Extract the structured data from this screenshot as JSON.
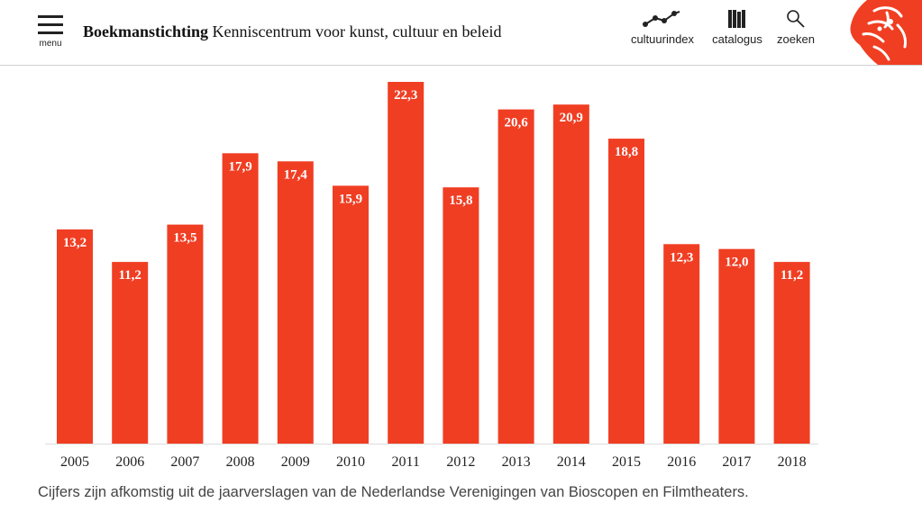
{
  "header": {
    "menu_label": "menu",
    "brand": "Boekmanstichting",
    "tagline": "Kenniscentrum voor kunst, cultuur en beleid",
    "nav": [
      {
        "label": "cultuurindex",
        "icon": "line-graph-icon"
      },
      {
        "label": "catalogus",
        "icon": "books-icon"
      },
      {
        "label": "zoeken",
        "icon": "search-icon"
      }
    ],
    "logo_icon": "boekman-portrait-logo-icon"
  },
  "colors": {
    "accent": "#f03e23",
    "label_text": "#ffffff",
    "axis_text": "#222222"
  },
  "chart_data": {
    "type": "bar",
    "categories": [
      "2005",
      "2006",
      "2007",
      "2008",
      "2009",
      "2010",
      "2011",
      "2012",
      "2013",
      "2014",
      "2015",
      "2016",
      "2017",
      "2018"
    ],
    "values": [
      13.2,
      11.2,
      13.5,
      17.9,
      17.4,
      15.9,
      22.3,
      15.8,
      20.6,
      20.9,
      18.8,
      12.3,
      12.0,
      11.2
    ],
    "value_labels": [
      "13,2",
      "11,2",
      "13,5",
      "17,9",
      "17,4",
      "15,9",
      "22,3",
      "15,8",
      "20,6",
      "20,9",
      "18,8",
      "12,3",
      "12,0",
      "11,2"
    ],
    "title": "",
    "xlabel": "",
    "ylabel": "",
    "ylim": [
      0,
      22.3
    ],
    "grid": false,
    "legend": "none"
  },
  "caption": "Cijfers zijn afkomstig uit de jaarverslagen van de Nederlandse Verenigingen van Bioscopen en Filmtheaters."
}
